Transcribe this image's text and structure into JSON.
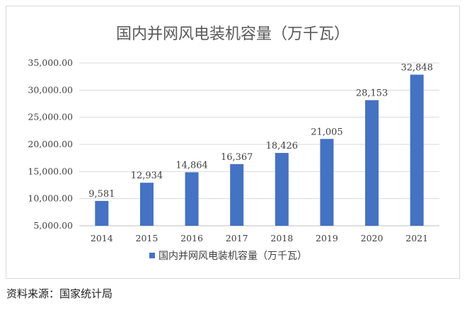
{
  "chart_data": {
    "type": "bar",
    "title": "国内并网风电装机容量（万千瓦）",
    "categories": [
      "2014",
      "2015",
      "2016",
      "2017",
      "2018",
      "2019",
      "2020",
      "2021"
    ],
    "series": [
      {
        "name": "国内并网风电装机容量（万千瓦）",
        "values": [
          9581,
          12934,
          14864,
          16367,
          18426,
          21005,
          28153,
          32848
        ],
        "data_labels": [
          "9,581",
          "12,934",
          "14,864",
          "16,367",
          "18,426",
          "21,005",
          "28,153",
          "32,848"
        ],
        "color": "#4472c4"
      }
    ],
    "ylim": [
      5000,
      35000
    ],
    "yticks": [
      "5,000.00",
      "10,000.00",
      "15,000.00",
      "20,000.00",
      "25,000.00",
      "30,000.00",
      "35,000.00"
    ],
    "grid": true,
    "legend_position": "bottom"
  },
  "source": "资料来源：国家统计局"
}
